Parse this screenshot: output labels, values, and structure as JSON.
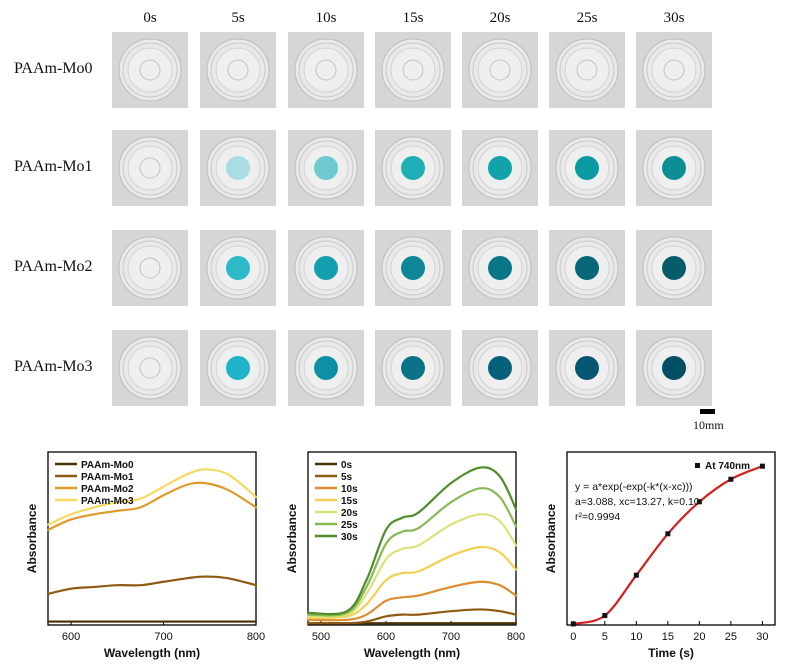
{
  "photo_grid": {
    "time_labels": [
      "0s",
      "5s",
      "10s",
      "15s",
      "20s",
      "25s",
      "30s"
    ],
    "row_labels": [
      "PAAm-Mo0",
      "PAAm-Mo1",
      "PAAm-Mo2",
      "PAAm-Mo3"
    ],
    "spot_colors": [
      [
        null,
        null,
        null,
        null,
        null,
        null,
        null
      ],
      [
        null,
        "#a9dde3",
        "#6fc9d1",
        "#1eaeb6",
        "#13a2aa",
        "#0c9aa2",
        "#0b8e96"
      ],
      [
        null,
        "#2cb9c8",
        "#139fb0",
        "#0d8798",
        "#0a7688",
        "#086879",
        "#075c6c"
      ],
      [
        null,
        "#1fb3c8",
        "#0e8fa6",
        "#0a738a",
        "#06607a",
        "#055670",
        "#044e66"
      ]
    ],
    "scale_label": "10mm"
  },
  "chart_data": [
    {
      "type": "line",
      "xlabel": "Wavelength (nm)",
      "ylabel": "Absorbance",
      "xlim": [
        575,
        800
      ],
      "ylim": [
        0,
        1
      ],
      "xticks": [
        600,
        700,
        800
      ],
      "legend_position": "top-left",
      "series": [
        {
          "name": "PAAm-Mo0",
          "color": "#4a3208",
          "x": [
            575,
            600,
            650,
            700,
            750,
            800
          ],
          "y": [
            0.02,
            0.02,
            0.02,
            0.02,
            0.02,
            0.02
          ]
        },
        {
          "name": "PAAm-Mo1",
          "color": "#8e5a12",
          "x": [
            575,
            600,
            625,
            650,
            675,
            700,
            725,
            745,
            770,
            800
          ],
          "y": [
            0.18,
            0.21,
            0.22,
            0.23,
            0.23,
            0.25,
            0.27,
            0.28,
            0.27,
            0.23
          ]
        },
        {
          "name": "PAAm-Mo2",
          "color": "#e09a2a",
          "x": [
            575,
            600,
            625,
            650,
            675,
            700,
            725,
            745,
            770,
            800
          ],
          "y": [
            0.55,
            0.61,
            0.64,
            0.66,
            0.68,
            0.75,
            0.81,
            0.82,
            0.78,
            0.68
          ]
        },
        {
          "name": "PAAm-Mo3",
          "color": "#f6d95f",
          "x": [
            575,
            600,
            625,
            650,
            675,
            700,
            725,
            745,
            770,
            800
          ],
          "y": [
            0.58,
            0.64,
            0.68,
            0.71,
            0.73,
            0.8,
            0.87,
            0.9,
            0.87,
            0.74
          ]
        }
      ]
    },
    {
      "type": "line",
      "xlabel": "Wavelength (nm)",
      "ylabel": "Absorbance",
      "xlim": [
        480,
        800
      ],
      "ylim": [
        0,
        1
      ],
      "xticks": [
        500,
        600,
        700,
        800
      ],
      "legend_position": "top-left",
      "series": [
        {
          "name": "0s",
          "color": "#4a3208",
          "x": [
            480,
            550,
            600,
            650,
            700,
            750,
            800
          ],
          "y": [
            0.01,
            0.01,
            0.01,
            0.01,
            0.01,
            0.01,
            0.01
          ]
        },
        {
          "name": "5s",
          "color": "#8e5a12",
          "x": [
            480,
            540,
            570,
            600,
            625,
            650,
            700,
            745,
            775,
            800
          ],
          "y": [
            0.01,
            0.01,
            0.02,
            0.05,
            0.06,
            0.06,
            0.08,
            0.09,
            0.08,
            0.06
          ]
        },
        {
          "name": "10s",
          "color": "#de8d2e",
          "x": [
            480,
            540,
            570,
            600,
            625,
            650,
            700,
            745,
            775,
            800
          ],
          "y": [
            0.03,
            0.03,
            0.06,
            0.14,
            0.16,
            0.17,
            0.22,
            0.25,
            0.23,
            0.17
          ]
        },
        {
          "name": "15s",
          "color": "#f4cf54",
          "x": [
            480,
            540,
            570,
            600,
            625,
            650,
            700,
            745,
            775,
            800
          ],
          "y": [
            0.04,
            0.05,
            0.12,
            0.26,
            0.3,
            0.31,
            0.4,
            0.45,
            0.42,
            0.32
          ]
        },
        {
          "name": "20s",
          "color": "#dce27a",
          "x": [
            480,
            540,
            570,
            600,
            625,
            650,
            700,
            745,
            775,
            800
          ],
          "y": [
            0.05,
            0.06,
            0.18,
            0.38,
            0.44,
            0.46,
            0.58,
            0.64,
            0.6,
            0.46
          ]
        },
        {
          "name": "25s",
          "color": "#87b955",
          "x": [
            480,
            540,
            570,
            600,
            625,
            650,
            700,
            745,
            775,
            800
          ],
          "y": [
            0.06,
            0.07,
            0.22,
            0.47,
            0.54,
            0.56,
            0.71,
            0.79,
            0.74,
            0.57
          ]
        },
        {
          "name": "30s",
          "color": "#4f8d2a",
          "x": [
            480,
            540,
            570,
            600,
            625,
            650,
            700,
            745,
            775,
            800
          ],
          "y": [
            0.07,
            0.08,
            0.26,
            0.55,
            0.62,
            0.65,
            0.82,
            0.91,
            0.86,
            0.67
          ]
        }
      ]
    },
    {
      "type": "scatter",
      "xlabel": "Time (s)",
      "ylabel": "Absorbance",
      "xlim": [
        -1,
        32
      ],
      "ylim": [
        0,
        3.3
      ],
      "xticks": [
        0,
        5,
        10,
        15,
        20,
        25,
        30
      ],
      "legend_position": "top-right",
      "series": [
        {
          "name": "At 740nm",
          "color": "#111111",
          "x": [
            0,
            5,
            10,
            15,
            20,
            25,
            30
          ],
          "y": [
            0.02,
            0.18,
            0.95,
            1.74,
            2.35,
            2.78,
            3.03
          ]
        }
      ],
      "fit": {
        "color": "#d42020"
      },
      "annotations": [
        "y = a*exp(-exp(-k*(x-xc)))",
        "a=3.088, xc=13.27, k=0.10",
        "r²=0.9994"
      ]
    }
  ]
}
